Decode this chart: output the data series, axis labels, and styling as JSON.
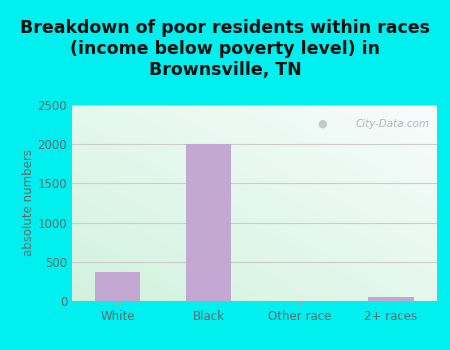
{
  "categories": [
    "White",
    "Black",
    "Other race",
    "2+ races"
  ],
  "values": [
    375,
    2000,
    0,
    50
  ],
  "bar_color": "#c4a8d4",
  "title": "Breakdown of poor residents within races\n(income below poverty level) in\nBrownsville, TN",
  "ylabel": "absolute numbers",
  "ylim": [
    0,
    2500
  ],
  "yticks": [
    0,
    500,
    1000,
    1500,
    2000,
    2500
  ],
  "background_outer": "#00f0f0",
  "title_fontsize": 12.5,
  "title_color": "#111111",
  "ylabel_fontsize": 8.5,
  "tick_fontsize": 8.5,
  "tick_color": "#666666",
  "watermark": "City-Data.com",
  "grid_color": "#cccccc",
  "plot_bg_color_topleft": "#d8f0e0",
  "plot_bg_color_topright": "#f0f8f8",
  "plot_bg_color_bottomleft": "#c8ecd8",
  "plot_bg_color_bottomright": "#f0f8f8"
}
